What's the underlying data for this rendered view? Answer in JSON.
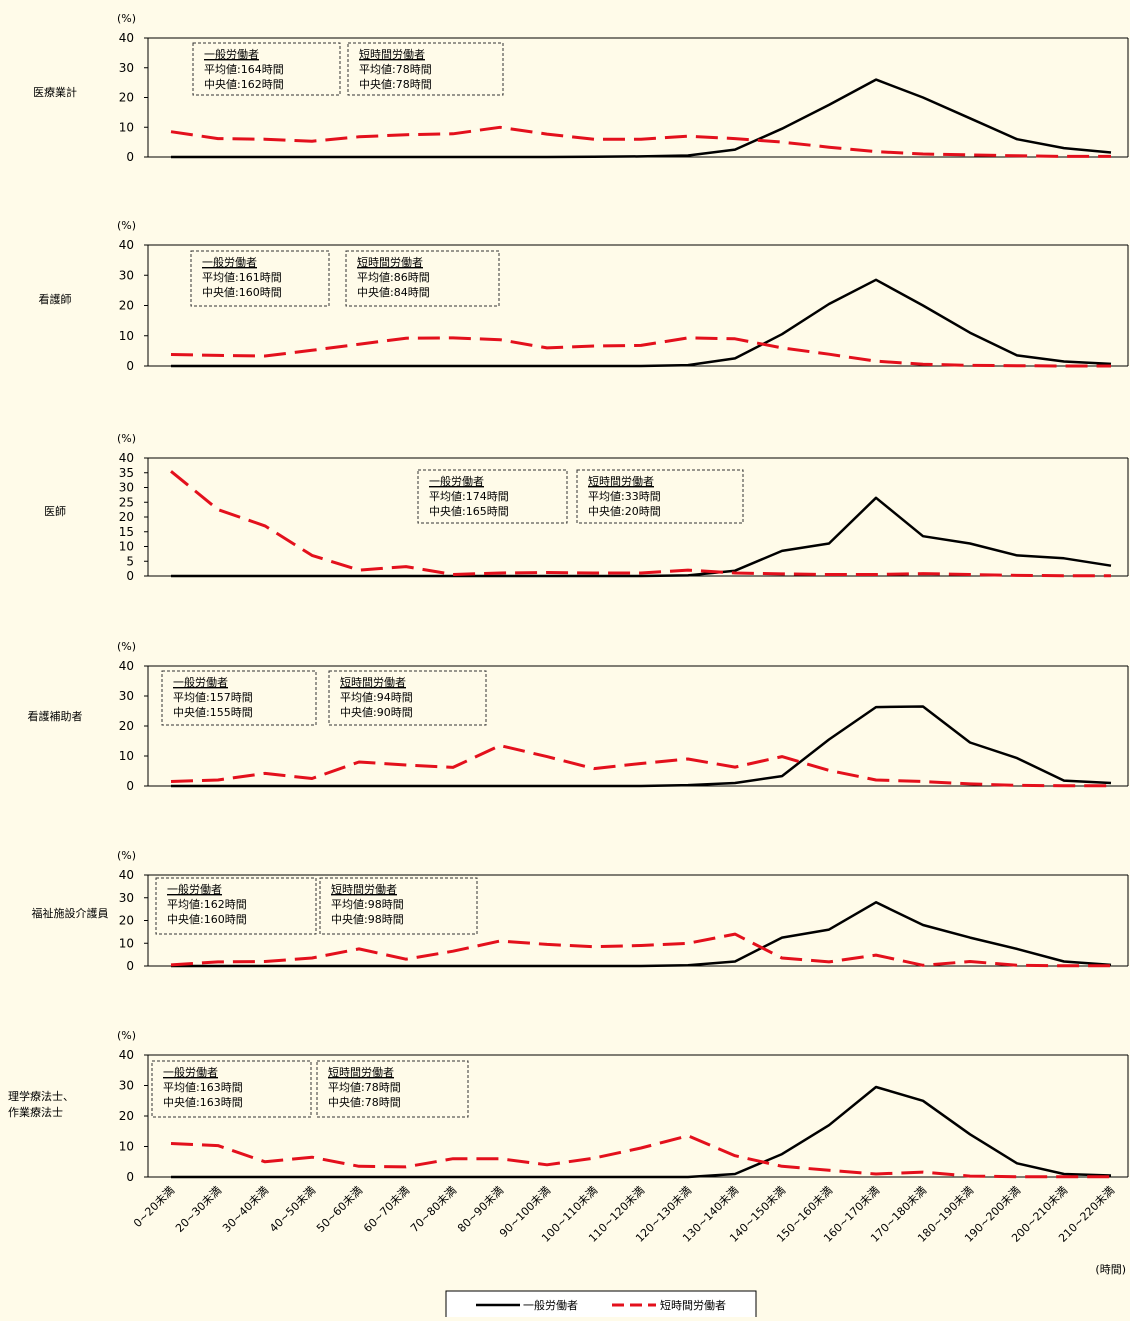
{
  "x_unit": "(時間)",
  "chart_data": [
    {
      "type": "line",
      "category": "医療業計",
      "y_unit": "(%)",
      "ylim": [
        0,
        40
      ],
      "yticks": [
        0,
        10,
        20,
        30,
        40
      ],
      "categories": [
        "0~20未満",
        "20~30未満",
        "30~40未満",
        "40~50未満",
        "50~60未満",
        "60~70未満",
        "70~80未満",
        "80~90未満",
        "90~100未満",
        "100~110未満",
        "110~120未満",
        "120~130未満",
        "130~140未満",
        "140~150未満",
        "150~160未満",
        "160~170未満",
        "170~180未満",
        "180~190未満",
        "190~200未満",
        "200~210未満",
        "210~220未満"
      ],
      "series": [
        {
          "name": "一般労働者",
          "values": [
            0,
            0,
            0,
            0,
            0,
            0,
            0,
            0,
            0,
            0.1,
            0.2,
            0.5,
            2.5,
            9.5,
            17.5,
            26,
            20,
            13,
            6,
            3,
            1.5
          ]
        },
        {
          "name": "短時間労働者",
          "values": [
            8.5,
            6.2,
            6,
            5.3,
            6.8,
            7.5,
            7.8,
            10,
            7.7,
            6,
            6,
            7,
            6.2,
            5,
            3.3,
            1.8,
            1,
            0.7,
            0.4,
            0.2,
            0.2
          ]
        }
      ],
      "boxes": [
        {
          "title": "一般労働者",
          "mean": "平均値:164時間",
          "median": "中央値:162時間"
        },
        {
          "title": "短時間労働者",
          "mean": "平均値:78時間",
          "median": "中央値:78時間"
        }
      ]
    },
    {
      "type": "line",
      "category": "看護師",
      "y_unit": "(%)",
      "ylim": [
        0,
        40
      ],
      "yticks": [
        0,
        10,
        20,
        30,
        40
      ],
      "categories": [
        "0~20未満",
        "20~30未満",
        "30~40未満",
        "40~50未満",
        "50~60未満",
        "60~70未満",
        "70~80未満",
        "80~90未満",
        "90~100未満",
        "100~110未満",
        "110~120未満",
        "120~130未満",
        "130~140未満",
        "140~150未満",
        "150~160未満",
        "160~170未満",
        "170~180未満",
        "180~190未満",
        "190~200未満",
        "200~210未満",
        "210~220未満"
      ],
      "series": [
        {
          "name": "一般労働者",
          "values": [
            0,
            0,
            0,
            0,
            0,
            0,
            0,
            0,
            0,
            0,
            0,
            0.3,
            2.5,
            10.5,
            20.5,
            28.5,
            20,
            11,
            3.5,
            1.5,
            0.7
          ]
        },
        {
          "name": "短時間労働者",
          "values": [
            3.8,
            3.5,
            3.3,
            5.2,
            7.2,
            9.2,
            9.3,
            8.7,
            6,
            6.6,
            6.8,
            9.3,
            9,
            6,
            3.9,
            1.6,
            0.6,
            0.2,
            0.1,
            0,
            0
          ]
        }
      ],
      "boxes": [
        {
          "title": "一般労働者",
          "mean": "平均値:161時間",
          "median": "中央値:160時間"
        },
        {
          "title": "短時間労働者",
          "mean": "平均値:86時間",
          "median": "中央値:84時間"
        }
      ]
    },
    {
      "type": "line",
      "category": "医師",
      "y_unit": "(%)",
      "ylim": [
        0,
        40
      ],
      "yticks": [
        0,
        5,
        10,
        15,
        20,
        25,
        30,
        35,
        40
      ],
      "categories": [
        "0~20未満",
        "20~30未満",
        "30~40未満",
        "40~50未満",
        "50~60未満",
        "60~70未満",
        "70~80未満",
        "80~90未満",
        "90~100未満",
        "100~110未満",
        "110~120未満",
        "120~130未満",
        "130~140未満",
        "140~150未満",
        "150~160未満",
        "160~170未満",
        "170~180未満",
        "180~190未満",
        "190~200未満",
        "200~210未満",
        "210~220未満"
      ],
      "series": [
        {
          "name": "一般労働者",
          "values": [
            0,
            0,
            0,
            0,
            0,
            0,
            0,
            0,
            0,
            0,
            0,
            0.2,
            1.8,
            8.5,
            11,
            26.5,
            13.5,
            11,
            7,
            6,
            3.5
          ]
        },
        {
          "name": "短時間労働者",
          "values": [
            35.5,
            22.5,
            17,
            7,
            2,
            3.2,
            0.5,
            1,
            1.2,
            1,
            1,
            2,
            1,
            0.7,
            0.5,
            0.5,
            0.8,
            0.5,
            0.2,
            0.1,
            0.1
          ]
        }
      ],
      "boxes": [
        {
          "title": "一般労働者",
          "mean": "平均値:174時間",
          "median": "中央値:165時間"
        },
        {
          "title": "短時間労働者",
          "mean": "平均値:33時間",
          "median": "中央値:20時間"
        }
      ]
    },
    {
      "type": "line",
      "category": "看護補助者",
      "y_unit": "(%)",
      "ylim": [
        0,
        40
      ],
      "yticks": [
        0,
        10,
        20,
        30,
        40
      ],
      "categories": [
        "0~20未満",
        "20~30未満",
        "30~40未満",
        "40~50未満",
        "50~60未満",
        "60~70未満",
        "70~80未満",
        "80~90未満",
        "90~100未満",
        "100~110未満",
        "110~120未満",
        "120~130未満",
        "130~140未満",
        "140~150未満",
        "150~160未満",
        "160~170未満",
        "170~180未満",
        "180~190未満",
        "190~200未満",
        "200~210未満",
        "210~220未満"
      ],
      "series": [
        {
          "name": "一般労働者",
          "values": [
            0,
            0,
            0,
            0,
            0,
            0,
            0,
            0,
            0,
            0,
            0,
            0.3,
            1,
            3.3,
            15.5,
            26.3,
            26.5,
            14.5,
            9.3,
            1.8,
            1
          ]
        },
        {
          "name": "短時間労働者",
          "values": [
            1.5,
            2,
            4.2,
            2.5,
            8,
            7,
            6.2,
            13.5,
            9.8,
            5.8,
            7.5,
            9,
            6.3,
            9.8,
            5.2,
            2,
            1.5,
            0.7,
            0.2,
            0.1,
            0.1
          ]
        }
      ],
      "boxes": [
        {
          "title": "一般労働者",
          "mean": "平均値:157時間",
          "median": "中央値:155時間"
        },
        {
          "title": "短時間労働者",
          "mean": "平均値:94時間",
          "median": "中央値:90時間"
        }
      ]
    },
    {
      "type": "line",
      "category": "福祉施設介護員",
      "y_unit": "(%)",
      "ylim": [
        0,
        40
      ],
      "yticks": [
        0,
        10,
        20,
        30,
        40
      ],
      "categories": [
        "0~20未満",
        "20~30未満",
        "30~40未満",
        "40~50未満",
        "50~60未満",
        "60~70未満",
        "70~80未満",
        "80~90未満",
        "90~100未満",
        "100~110未満",
        "110~120未満",
        "120~130未満",
        "130~140未満",
        "140~150未満",
        "150~160未満",
        "160~170未満",
        "170~180未満",
        "180~190未満",
        "190~200未満",
        "200~210未満",
        "210~220未満"
      ],
      "series": [
        {
          "name": "一般労働者",
          "values": [
            0,
            0,
            0,
            0,
            0,
            0,
            0,
            0,
            0,
            0,
            0,
            0.3,
            2,
            12.5,
            16,
            28,
            18,
            12.5,
            7.5,
            2,
            0.5
          ]
        },
        {
          "name": "短時間労働者",
          "values": [
            0.5,
            1.8,
            2,
            3.5,
            7.5,
            3,
            6.5,
            11,
            9.5,
            8.5,
            9,
            10,
            14,
            3.5,
            1.8,
            4.8,
            0.3,
            2,
            0.3,
            0.1,
            0.1
          ]
        }
      ],
      "boxes": [
        {
          "title": "一般労働者",
          "mean": "平均値:162時間",
          "median": "中央値:160時間"
        },
        {
          "title": "短時間労働者",
          "mean": "平均値:98時間",
          "median": "中央値:98時間"
        }
      ]
    },
    {
      "type": "line",
      "category": "理学療法士、作業療法士",
      "y_unit": "(%)",
      "ylim": [
        0,
        40
      ],
      "yticks": [
        0,
        10,
        20,
        30,
        40
      ],
      "categories": [
        "0~20未満",
        "20~30未満",
        "30~40未満",
        "40~50未満",
        "50~60未満",
        "60~70未満",
        "70~80未満",
        "80~90未満",
        "90~100未満",
        "100~110未満",
        "110~120未満",
        "120~130未満",
        "130~140未満",
        "140~150未満",
        "150~160未満",
        "160~170未満",
        "170~180未満",
        "180~190未満",
        "190~200未満",
        "200~210未満",
        "210~220未満"
      ],
      "series": [
        {
          "name": "一般労働者",
          "values": [
            0,
            0,
            0,
            0,
            0,
            0,
            0,
            0,
            0,
            0,
            0,
            0,
            1,
            7.5,
            17,
            29.5,
            25,
            14,
            4.5,
            1,
            0.5
          ]
        },
        {
          "name": "短時間労働者",
          "values": [
            11,
            10.3,
            5,
            6.5,
            3.5,
            3.3,
            6,
            6,
            4,
            6.2,
            9.5,
            13.5,
            7,
            3.5,
            2.2,
            1,
            1.6,
            0.3,
            0.1,
            0.1,
            0.1
          ]
        }
      ],
      "boxes": [
        {
          "title": "一般労働者",
          "mean": "平均値:163時間",
          "median": "中央値:163時間"
        },
        {
          "title": "短時間労働者",
          "mean": "平均値:78時間",
          "median": "中央値:78時間"
        }
      ]
    }
  ],
  "legend": [
    {
      "label": "一般労働者",
      "color": "#000000",
      "dash": false
    },
    {
      "label": "短時間労働者",
      "color": "#e3101c",
      "dash": true
    }
  ]
}
